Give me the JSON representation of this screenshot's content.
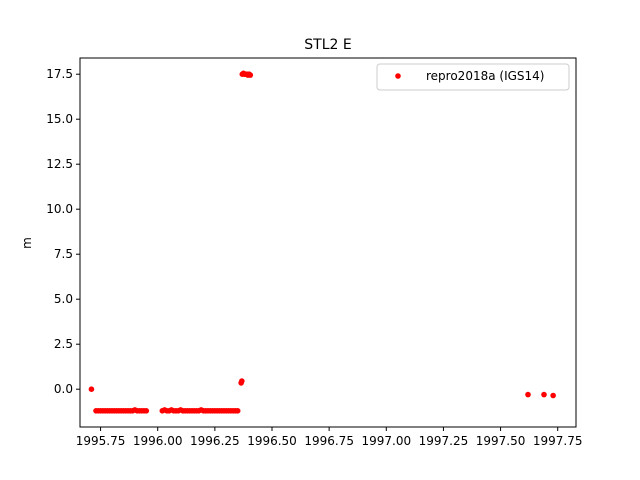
{
  "chart_data": {
    "type": "scatter",
    "title": "STL2 E",
    "xlabel": "",
    "ylabel": "m",
    "xlim": [
      1995.66,
      1997.83
    ],
    "ylim": [
      -2.1,
      18.4
    ],
    "x_ticks": [
      1995.75,
      1996.0,
      1996.25,
      1996.5,
      1996.75,
      1997.0,
      1997.25,
      1997.5,
      1997.75
    ],
    "x_tick_labels": [
      "1995.75",
      "1996.00",
      "1996.25",
      "1996.50",
      "1996.75",
      "1997.00",
      "1997.25",
      "1997.50",
      "1997.75"
    ],
    "y_ticks": [
      0.0,
      2.5,
      5.0,
      7.5,
      10.0,
      12.5,
      15.0,
      17.5
    ],
    "y_tick_labels": [
      "0.0",
      "2.5",
      "5.0",
      "7.5",
      "10.0",
      "12.5",
      "15.0",
      "17.5"
    ],
    "grid": false,
    "legend_position": "top-right",
    "series": [
      {
        "name": "repro2018a (IGS14)",
        "color": "#ff0000",
        "marker": "circle",
        "points": [
          [
            1995.71,
            0.0
          ],
          [
            1995.73,
            -1.2
          ],
          [
            1995.74,
            -1.2
          ],
          [
            1995.75,
            -1.2
          ],
          [
            1995.76,
            -1.2
          ],
          [
            1995.77,
            -1.2
          ],
          [
            1995.78,
            -1.2
          ],
          [
            1995.79,
            -1.2
          ],
          [
            1995.8,
            -1.2
          ],
          [
            1995.81,
            -1.2
          ],
          [
            1995.82,
            -1.2
          ],
          [
            1995.83,
            -1.2
          ],
          [
            1995.84,
            -1.2
          ],
          [
            1995.85,
            -1.2
          ],
          [
            1995.86,
            -1.2
          ],
          [
            1995.87,
            -1.2
          ],
          [
            1995.88,
            -1.2
          ],
          [
            1995.89,
            -1.2
          ],
          [
            1995.9,
            -1.15
          ],
          [
            1995.91,
            -1.2
          ],
          [
            1995.92,
            -1.2
          ],
          [
            1995.93,
            -1.2
          ],
          [
            1995.94,
            -1.2
          ],
          [
            1995.95,
            -1.2
          ],
          [
            1996.02,
            -1.2
          ],
          [
            1996.03,
            -1.15
          ],
          [
            1996.04,
            -1.2
          ],
          [
            1996.05,
            -1.2
          ],
          [
            1996.06,
            -1.15
          ],
          [
            1996.07,
            -1.2
          ],
          [
            1996.08,
            -1.2
          ],
          [
            1996.09,
            -1.2
          ],
          [
            1996.1,
            -1.15
          ],
          [
            1996.11,
            -1.2
          ],
          [
            1996.12,
            -1.2
          ],
          [
            1996.13,
            -1.2
          ],
          [
            1996.14,
            -1.2
          ],
          [
            1996.15,
            -1.2
          ],
          [
            1996.16,
            -1.2
          ],
          [
            1996.17,
            -1.2
          ],
          [
            1996.18,
            -1.2
          ],
          [
            1996.19,
            -1.15
          ],
          [
            1996.2,
            -1.2
          ],
          [
            1996.21,
            -1.2
          ],
          [
            1996.22,
            -1.2
          ],
          [
            1996.23,
            -1.2
          ],
          [
            1996.24,
            -1.2
          ],
          [
            1996.25,
            -1.2
          ],
          [
            1996.26,
            -1.2
          ],
          [
            1996.27,
            -1.2
          ],
          [
            1996.28,
            -1.2
          ],
          [
            1996.29,
            -1.2
          ],
          [
            1996.3,
            -1.2
          ],
          [
            1996.31,
            -1.2
          ],
          [
            1996.32,
            -1.2
          ],
          [
            1996.33,
            -1.2
          ],
          [
            1996.34,
            -1.2
          ],
          [
            1996.35,
            -1.2
          ],
          [
            1996.365,
            0.35
          ],
          [
            1996.368,
            0.45
          ],
          [
            1996.37,
            17.5
          ],
          [
            1996.375,
            17.55
          ],
          [
            1996.38,
            17.5
          ],
          [
            1996.385,
            17.5
          ],
          [
            1996.39,
            17.5
          ],
          [
            1996.395,
            17.45
          ],
          [
            1996.4,
            17.5
          ],
          [
            1996.405,
            17.45
          ],
          [
            1997.62,
            -0.3
          ],
          [
            1997.69,
            -0.3
          ],
          [
            1997.73,
            -0.35
          ]
        ]
      }
    ]
  }
}
